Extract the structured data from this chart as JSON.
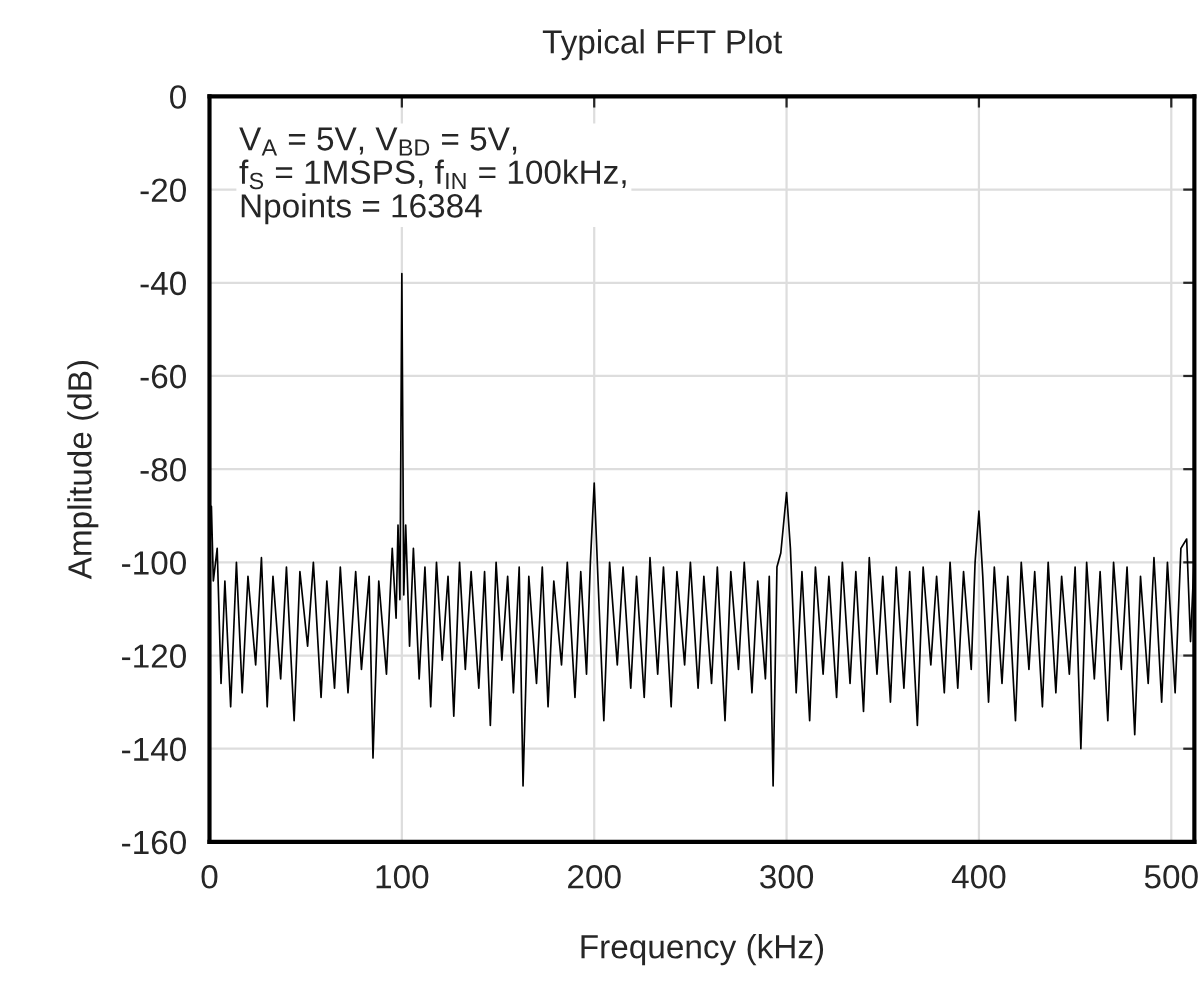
{
  "chart_data": {
    "type": "line",
    "title": "Typical FFT Plot",
    "xlabel": "Frequency (kHz)",
    "ylabel": "Amplitude (dB)",
    "annotations": [
      "V$_{A}$ = 5V, V$_{BD}$ = 5V,\nf$_{S}$ = 1MSPS, f$_{IN}$ = 100kHz,\nNpoints = 16384"
    ],
    "xlim": [
      0,
      512
    ],
    "xticks": [
      0,
      100,
      200,
      300,
      400,
      500
    ],
    "ylim": [
      -160,
      0
    ],
    "yticks": [
      -160,
      -140,
      -120,
      -100,
      -80,
      -60,
      -40,
      -20,
      0
    ],
    "grid": true,
    "marker": "none",
    "line_style": "solid",
    "series": [
      {
        "color": "#000000",
        "x": [
          0,
          1,
          2,
          4,
          6,
          8,
          11,
          14,
          17,
          20,
          24,
          27,
          30,
          33,
          37,
          40,
          44,
          47,
          51,
          54,
          58,
          61,
          65,
          68,
          72,
          76,
          79,
          83,
          85,
          88,
          92,
          95,
          97,
          98,
          99,
          100,
          101,
          102,
          104,
          106,
          109,
          112,
          115,
          118,
          121,
          124,
          127,
          130,
          133,
          136,
          140,
          143,
          146,
          149,
          152,
          155,
          158,
          161,
          163,
          166,
          170,
          173,
          176,
          179,
          183,
          186,
          190,
          193,
          196,
          198,
          200,
          202,
          205,
          208,
          212,
          215,
          219,
          222,
          226,
          229,
          233,
          236,
          240,
          243,
          247,
          250,
          254,
          257,
          261,
          264,
          268,
          271,
          275,
          278,
          282,
          285,
          289,
          291,
          293,
          295,
          297,
          300,
          302,
          305,
          308,
          312,
          315,
          319,
          322,
          326,
          329,
          333,
          336,
          340,
          343,
          347,
          350,
          354,
          357,
          361,
          364,
          368,
          371,
          375,
          378,
          382,
          385,
          389,
          392,
          396,
          398,
          400,
          402,
          405,
          408,
          412,
          415,
          419,
          422,
          426,
          429,
          433,
          436,
          440,
          443,
          447,
          450,
          453,
          456,
          460,
          463,
          467,
          470,
          474,
          477,
          481,
          484,
          488,
          491,
          495,
          498,
          502,
          505,
          508,
          510,
          512
        ],
        "values": [
          -100,
          -88,
          -104,
          -97,
          -126,
          -104,
          -131,
          -100,
          -128,
          -103,
          -122,
          -99,
          -131,
          -103,
          -125,
          -101,
          -134,
          -102,
          -118,
          -100,
          -129,
          -104,
          -127,
          -101,
          -128,
          -102,
          -123,
          -103,
          -142,
          -104,
          -124,
          -97,
          -112,
          -92,
          -108,
          -38,
          -107,
          -92,
          -118,
          -97,
          -125,
          -101,
          -131,
          -100,
          -121,
          -103,
          -133,
          -100,
          -123,
          -102,
          -127,
          -102,
          -135,
          -100,
          -121,
          -103,
          -128,
          -101,
          -148,
          -103,
          -126,
          -101,
          -131,
          -104,
          -122,
          -100,
          -129,
          -102,
          -124,
          -100,
          -83,
          -104,
          -134,
          -100,
          -122,
          -101,
          -127,
          -103,
          -129,
          -99,
          -124,
          -101,
          -131,
          -102,
          -122,
          -100,
          -127,
          -103,
          -126,
          -101,
          -134,
          -102,
          -123,
          -100,
          -128,
          -104,
          -125,
          -103,
          -148,
          -101,
          -98,
          -85,
          -97,
          -128,
          -102,
          -134,
          -101,
          -124,
          -103,
          -129,
          -100,
          -126,
          -102,
          -132,
          -99,
          -124,
          -103,
          -130,
          -101,
          -127,
          -102,
          -135,
          -101,
          -122,
          -103,
          -128,
          -100,
          -127,
          -102,
          -123,
          -100,
          -89,
          -103,
          -130,
          -101,
          -126,
          -103,
          -134,
          -100,
          -123,
          -102,
          -131,
          -100,
          -128,
          -103,
          -124,
          -101,
          -140,
          -100,
          -125,
          -102,
          -134,
          -100,
          -123,
          -101,
          -137,
          -103,
          -126,
          -99,
          -130,
          -100,
          -128,
          -97,
          -95,
          -117,
          -98
        ]
      }
    ]
  }
}
